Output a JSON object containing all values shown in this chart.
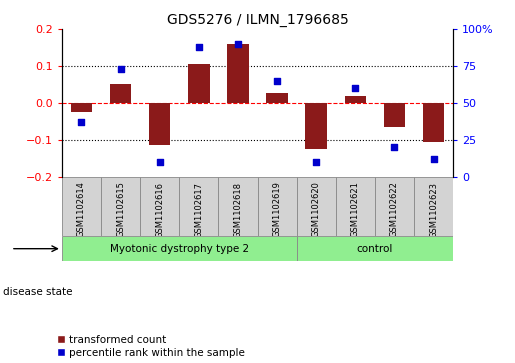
{
  "title": "GDS5276 / ILMN_1796685",
  "samples": [
    "GSM1102614",
    "GSM1102615",
    "GSM1102616",
    "GSM1102617",
    "GSM1102618",
    "GSM1102619",
    "GSM1102620",
    "GSM1102621",
    "GSM1102622",
    "GSM1102623"
  ],
  "red_values": [
    -0.025,
    0.05,
    -0.115,
    0.105,
    0.16,
    0.028,
    -0.125,
    0.02,
    -0.065,
    -0.105
  ],
  "blue_values": [
    37,
    73,
    10,
    88,
    90,
    65,
    10,
    60,
    20,
    12
  ],
  "groups": [
    {
      "label": "Myotonic dystrophy type 2",
      "start": 0,
      "end": 5
    },
    {
      "label": "control",
      "start": 6,
      "end": 9
    }
  ],
  "group_color": "#90EE90",
  "bar_color": "#8B1A1A",
  "dot_color": "#0000CC",
  "ylim_left": [
    -0.2,
    0.2
  ],
  "ylim_right": [
    0,
    100
  ],
  "yticks_left": [
    -0.2,
    -0.1,
    0.0,
    0.1,
    0.2
  ],
  "yticks_right": [
    0,
    25,
    50,
    75,
    100
  ],
  "ytick_labels_right": [
    "0",
    "25",
    "50",
    "75",
    "100%"
  ],
  "grid_values": [
    -0.1,
    0.0,
    0.1
  ],
  "legend_red": "transformed count",
  "legend_blue": "percentile rank within the sample",
  "disease_state_label": "disease state"
}
